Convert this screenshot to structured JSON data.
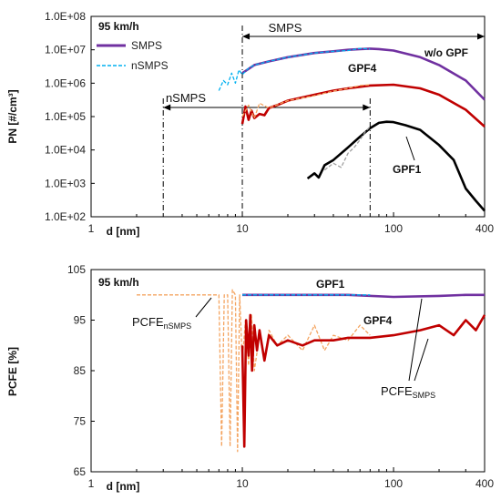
{
  "chart_data": [
    {
      "type": "line",
      "title": "95 km/h",
      "xlabel": "d [nm]",
      "ylabel": "PN [#/cm³]",
      "x_scale": "log",
      "y_scale": "log",
      "xlim": [
        1,
        400
      ],
      "ylim": [
        100,
        100000000
      ],
      "x_ticks": [
        "1",
        "10",
        "100",
        "400"
      ],
      "y_ticks": [
        "1.0E+02",
        "1.0E+03",
        "1.0E+04",
        "1.0E+05",
        "1.0E+06",
        "1.0E+07",
        "1.0E+08"
      ],
      "legend": {
        "position": "top-left",
        "entries": [
          "SMPS",
          "nSMPS"
        ]
      },
      "annotations": {
        "smps_range_label": "SMPS",
        "nsmps_range_label": "nSMPS",
        "wo_gpf": "w/o GPF",
        "gpf4": "GPF4",
        "gpf1": "GPF1",
        "smps_range": [
          10,
          400
        ],
        "nsmps_range": [
          3,
          70
        ]
      },
      "series": [
        {
          "name": "SMPS",
          "color": "#7030a0",
          "style": "solid",
          "x": [
            10,
            12,
            15,
            20,
            30,
            40,
            50,
            60,
            70,
            80,
            100,
            150,
            200,
            300,
            400
          ],
          "y": [
            2000000,
            3500000,
            4500000,
            6000000,
            8000000,
            9000000,
            10000000,
            10500000,
            10800000,
            10500000,
            9500000,
            6000000,
            3500000,
            1200000,
            320000
          ]
        },
        {
          "name": "nSMPS",
          "color": "#00b0f0",
          "style": "dashed",
          "x": [
            7,
            7.5,
            8,
            8.5,
            9,
            9.5,
            10,
            11,
            12,
            15,
            20,
            30,
            40,
            50,
            60,
            70
          ],
          "y": [
            600000,
            1200000,
            900000,
            2000000,
            1000000,
            2500000,
            1800000,
            2800000,
            3500000,
            4500000,
            6000000,
            8000000,
            9000000,
            9500000,
            11000000,
            10500000
          ]
        },
        {
          "color": "#c00000",
          "style": "solid",
          "x": [
            10,
            10.5,
            11,
            11.5,
            12,
            13,
            14,
            15,
            17,
            20,
            30,
            40,
            50,
            70,
            100,
            150,
            200,
            300,
            400
          ],
          "y": [
            60000,
            200000,
            80000,
            150000,
            90000,
            120000,
            110000,
            180000,
            220000,
            300000,
            450000,
            600000,
            700000,
            850000,
            900000,
            700000,
            450000,
            160000,
            50000
          ]
        },
        {
          "color": "#f4a460",
          "style": "dashed",
          "x": [
            10,
            11,
            12,
            13,
            15,
            20,
            30,
            40,
            50,
            60,
            70
          ],
          "y": [
            100000,
            220000,
            90000,
            250000,
            180000,
            300000,
            420000,
            580000,
            700000,
            850000,
            900000
          ]
        },
        {
          "color": "#000000",
          "style": "solid",
          "x": [
            27,
            30,
            32,
            35,
            40,
            50,
            60,
            70,
            80,
            90,
            100,
            120,
            150,
            200,
            250,
            300,
            350,
            400
          ],
          "y": [
            1400,
            2000,
            1500,
            3500,
            5000,
            12000,
            25000,
            45000,
            65000,
            70000,
            68000,
            55000,
            40000,
            14000,
            5000,
            700,
            300,
            150
          ]
        },
        {
          "color": "#a0a0a0",
          "style": "dashed",
          "x": [
            35,
            40,
            45,
            50,
            55,
            60,
            65,
            70
          ],
          "y": [
            2500,
            4000,
            3000,
            8000,
            12000,
            20000,
            35000,
            50000
          ]
        }
      ]
    },
    {
      "type": "line",
      "title": "95 km/h",
      "xlabel": "d [nm]",
      "ylabel": "PCFE [%]",
      "x_scale": "log",
      "xlim": [
        1,
        400
      ],
      "ylim": [
        65,
        105
      ],
      "x_ticks": [
        "1",
        "10",
        "100",
        "400"
      ],
      "y_ticks": [
        "65",
        "75",
        "85",
        "95",
        "105"
      ],
      "annotations": {
        "gpf1": "GPF1",
        "gpf4": "GPF4",
        "pcfe_nsmps": "PCFE",
        "pcfe_nsmps_sub": "nSMPS",
        "pcfe_smps": "PCFE",
        "pcfe_smps_sub": "SMPS"
      },
      "series": [
        {
          "color": "#f4a460",
          "style": "dashed",
          "x": [
            2,
            5,
            6.5,
            7,
            7.3,
            7.6,
            8,
            8.3,
            8.6,
            9,
            9.3,
            9.6,
            10,
            10.5,
            11,
            11.5,
            12,
            13,
            14,
            15,
            17,
            20,
            25,
            30,
            35,
            40,
            50,
            60,
            70
          ],
          "y": [
            100,
            100,
            100,
            100,
            70,
            100,
            100,
            70,
            101,
            100,
            69,
            100,
            87,
            95,
            86,
            96,
            85,
            92,
            87,
            93,
            90,
            92,
            89,
            94,
            89,
            92,
            91,
            94,
            92
          ]
        },
        {
          "color": "#c00000",
          "style": "solid",
          "x": [
            10,
            10.3,
            10.6,
            11,
            11.3,
            11.6,
            12,
            12.5,
            13,
            14,
            15,
            17,
            20,
            25,
            30,
            40,
            50,
            70,
            100,
            150,
            200,
            250,
            300,
            350,
            400
          ],
          "y": [
            90,
            70,
            95,
            88,
            96,
            85,
            94,
            89,
            93,
            87,
            92,
            90,
            91,
            90,
            91,
            91,
            91.5,
            91.5,
            92,
            93,
            94,
            92,
            95,
            93,
            96
          ]
        },
        {
          "color": "#7030a0",
          "style": "solid",
          "x": [
            10,
            20,
            50,
            100,
            200,
            300,
            400
          ],
          "y": [
            100,
            100,
            100,
            99.6,
            99.8,
            100,
            100
          ]
        },
        {
          "color": "#00b0f0",
          "style": "dashed",
          "x": [
            10,
            20,
            40,
            70
          ],
          "y": [
            100,
            100,
            100,
            100
          ]
        }
      ]
    }
  ]
}
